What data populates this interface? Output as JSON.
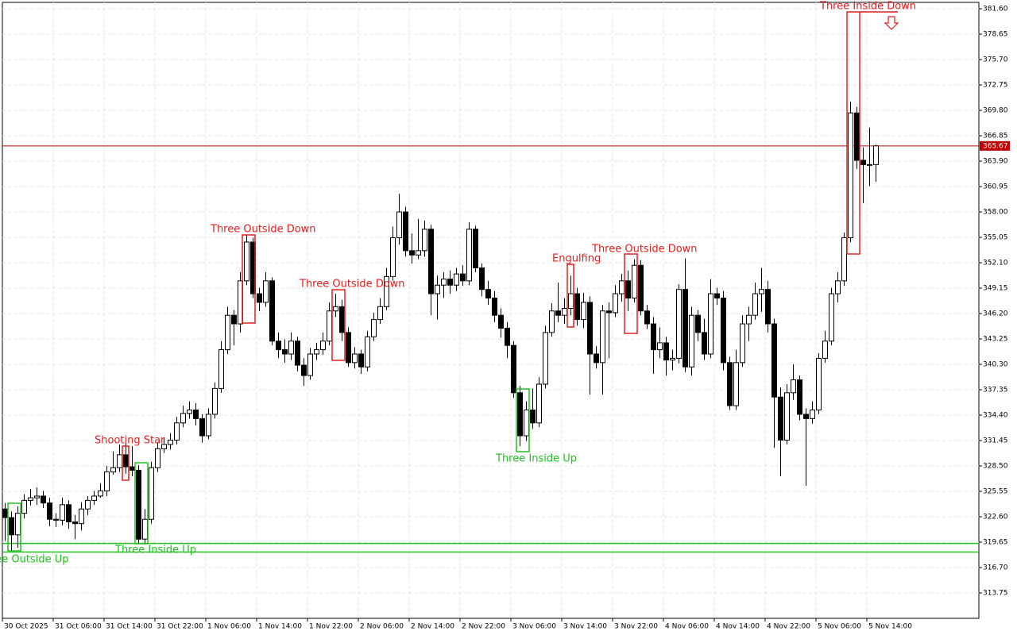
{
  "chart_data": {
    "type": "candlestick",
    "candles": [
      [
        323.5,
        324.2,
        319.8,
        322.5
      ],
      [
        322.5,
        323.2,
        318.6,
        320.5
      ],
      [
        320.5,
        323.8,
        319.0,
        323.0
      ],
      [
        323.0,
        325.2,
        322.4,
        324.5
      ],
      [
        324.5,
        325.8,
        323.9,
        324.8
      ],
      [
        324.8,
        326.0,
        324.0,
        325.0
      ],
      [
        325.0,
        325.6,
        323.6,
        324.2
      ],
      [
        324.2,
        324.8,
        321.5,
        322.3
      ],
      [
        322.3,
        323.0,
        321.4,
        322.2
      ],
      [
        322.2,
        324.8,
        321.6,
        324.0
      ],
      [
        324.0,
        324.5,
        321.2,
        322.0
      ],
      [
        322.0,
        322.8,
        320.0,
        321.8
      ],
      [
        321.8,
        324.3,
        321.0,
        323.5
      ],
      [
        323.5,
        325.0,
        322.8,
        324.5
      ],
      [
        324.5,
        325.6,
        324.0,
        325.0
      ],
      [
        325.0,
        326.5,
        324.8,
        325.6
      ],
      [
        325.6,
        328.5,
        325.0,
        327.8
      ],
      [
        327.8,
        330.2,
        327.5,
        328.3
      ],
      [
        328.3,
        331.0,
        327.8,
        329.8
      ],
      [
        329.8,
        331.2,
        327.6,
        328.4
      ],
      [
        328.4,
        330.8,
        327.3,
        328.0
      ],
      [
        328.0,
        328.6,
        319.5,
        320.0
      ],
      [
        320.0,
        323.5,
        319.4,
        322.3
      ],
      [
        322.3,
        329.0,
        321.8,
        328.3
      ],
      [
        328.3,
        331.2,
        327.8,
        330.5
      ],
      [
        330.5,
        331.8,
        330.0,
        331.0
      ],
      [
        331.0,
        332.3,
        330.4,
        331.5
      ],
      [
        331.5,
        334.2,
        331.0,
        333.5
      ],
      [
        333.5,
        335.5,
        333.0,
        334.6
      ],
      [
        334.6,
        336.0,
        334.0,
        335.0
      ],
      [
        335.0,
        335.8,
        333.2,
        334.0
      ],
      [
        334.0,
        334.5,
        331.2,
        332.0
      ],
      [
        332.0,
        335.2,
        331.6,
        334.5
      ],
      [
        334.5,
        338.2,
        334.0,
        337.5
      ],
      [
        337.5,
        343.0,
        337.0,
        342.0
      ],
      [
        342.0,
        347.0,
        341.5,
        346.0
      ],
      [
        346.0,
        346.6,
        342.5,
        345.0
      ],
      [
        345.0,
        351.0,
        344.0,
        350.0
      ],
      [
        350.0,
        355.3,
        349.5,
        354.5
      ],
      [
        354.5,
        355.0,
        348.0,
        348.5
      ],
      [
        348.5,
        349.2,
        346.5,
        347.5
      ],
      [
        347.5,
        351.0,
        347.0,
        350.0
      ],
      [
        350.0,
        350.4,
        342.5,
        343.0
      ],
      [
        343.0,
        344.0,
        341.0,
        342.0
      ],
      [
        342.0,
        343.2,
        340.5,
        341.5
      ],
      [
        341.5,
        344.0,
        340.8,
        343.0
      ],
      [
        343.0,
        343.5,
        339.5,
        340.2
      ],
      [
        340.2,
        341.0,
        337.8,
        339.0
      ],
      [
        339.0,
        342.2,
        338.5,
        341.5
      ],
      [
        341.5,
        342.8,
        340.8,
        342.0
      ],
      [
        342.0,
        344.0,
        341.4,
        343.0
      ],
      [
        343.0,
        347.5,
        342.5,
        346.5
      ],
      [
        346.5,
        348.5,
        345.8,
        347.0
      ],
      [
        347.0,
        347.8,
        343.0,
        344.0
      ],
      [
        344.0,
        344.6,
        340.0,
        340.5
      ],
      [
        340.5,
        342.3,
        339.8,
        341.5
      ],
      [
        341.5,
        342.0,
        339.2,
        340.0
      ],
      [
        340.0,
        344.2,
        339.5,
        343.5
      ],
      [
        343.5,
        346.3,
        343.0,
        345.5
      ],
      [
        345.5,
        348.0,
        345.0,
        347.0
      ],
      [
        347.0,
        351.5,
        346.6,
        350.5
      ],
      [
        350.5,
        356.3,
        350.0,
        355.0
      ],
      [
        355.0,
        360.1,
        354.2,
        358.0
      ],
      [
        358.0,
        358.6,
        352.8,
        353.5
      ],
      [
        353.5,
        355.5,
        352.0,
        353.0
      ],
      [
        353.0,
        357.2,
        352.5,
        353.5
      ],
      [
        353.5,
        357.0,
        352.8,
        356.0
      ],
      [
        356.0,
        356.5,
        346.0,
        348.5
      ],
      [
        348.5,
        350.6,
        345.5,
        349.5
      ],
      [
        349.5,
        351.0,
        348.0,
        350.2
      ],
      [
        350.2,
        351.2,
        348.5,
        349.5
      ],
      [
        349.5,
        351.5,
        348.8,
        350.8
      ],
      [
        350.8,
        351.8,
        349.4,
        350.0
      ],
      [
        350.0,
        356.8,
        349.5,
        356.0
      ],
      [
        356.0,
        356.4,
        351.0,
        351.5
      ],
      [
        351.5,
        352.0,
        348.2,
        349.0
      ],
      [
        349.0,
        350.0,
        347.2,
        348.0
      ],
      [
        348.0,
        348.8,
        345.2,
        346.0
      ],
      [
        346.0,
        346.8,
        343.4,
        344.5
      ],
      [
        344.5,
        345.2,
        341.0,
        342.5
      ],
      [
        342.5,
        343.0,
        336.4,
        337.0
      ],
      [
        337.0,
        337.8,
        330.8,
        332.0
      ],
      [
        332.0,
        336.0,
        331.4,
        335.0
      ],
      [
        335.0,
        337.5,
        332.8,
        333.5
      ],
      [
        333.5,
        338.8,
        333.0,
        338.0
      ],
      [
        338.0,
        344.8,
        337.5,
        344.0
      ],
      [
        344.0,
        347.4,
        343.5,
        346.5
      ],
      [
        346.5,
        349.8,
        345.2,
        346.0
      ],
      [
        346.0,
        348.0,
        345.0,
        346.8
      ],
      [
        346.8,
        350.6,
        346.0,
        348.5
      ],
      [
        348.5,
        349.2,
        344.8,
        345.5
      ],
      [
        345.5,
        348.6,
        344.5,
        347.5
      ],
      [
        347.5,
        348.2,
        336.8,
        341.5
      ],
      [
        341.5,
        342.4,
        339.8,
        340.5
      ],
      [
        340.5,
        347.2,
        336.8,
        346.5
      ],
      [
        346.5,
        347.5,
        341.0,
        346.3
      ],
      [
        346.3,
        349.5,
        345.8,
        348.5
      ],
      [
        348.5,
        350.8,
        347.6,
        350.0
      ],
      [
        350.0,
        351.2,
        346.5,
        348.0
      ],
      [
        348.0,
        352.5,
        347.5,
        351.8
      ],
      [
        351.8,
        352.4,
        346.0,
        346.5
      ],
      [
        346.5,
        347.2,
        344.4,
        345.0
      ],
      [
        345.0,
        345.8,
        339.2,
        342.0
      ],
      [
        342.0,
        344.6,
        341.0,
        342.8
      ],
      [
        342.8,
        343.5,
        339.0,
        340.8
      ],
      [
        340.8,
        342.0,
        339.6,
        341.0
      ],
      [
        341.0,
        349.6,
        340.4,
        349.0
      ],
      [
        349.0,
        352.6,
        339.4,
        340.0
      ],
      [
        340.0,
        347.0,
        339.0,
        346.0
      ],
      [
        346.0,
        346.6,
        343.0,
        344.0
      ],
      [
        344.0,
        345.6,
        340.8,
        341.5
      ],
      [
        341.5,
        350.2,
        341.0,
        348.5
      ],
      [
        348.5,
        349.2,
        347.2,
        348.0
      ],
      [
        348.0,
        348.8,
        339.6,
        340.5
      ],
      [
        340.5,
        341.2,
        335.0,
        335.5
      ],
      [
        335.5,
        342.0,
        335.0,
        340.5
      ],
      [
        340.5,
        346.0,
        340.0,
        345.0
      ],
      [
        345.0,
        347.0,
        343.0,
        346.0
      ],
      [
        346.0,
        349.8,
        345.5,
        348.5
      ],
      [
        348.5,
        351.5,
        346.4,
        349.0
      ],
      [
        349.0,
        350.0,
        344.0,
        345.0
      ],
      [
        345.0,
        345.6,
        330.6,
        336.5
      ],
      [
        336.5,
        337.6,
        327.3,
        331.5
      ],
      [
        331.5,
        338.0,
        331.0,
        337.0
      ],
      [
        337.0,
        340.3,
        336.2,
        338.5
      ],
      [
        338.5,
        339.0,
        333.8,
        334.5
      ],
      [
        334.5,
        335.2,
        326.2,
        334.0
      ],
      [
        334.0,
        336.0,
        333.4,
        335.0
      ],
      [
        335.0,
        341.6,
        334.5,
        341.0
      ],
      [
        341.0,
        344.2,
        340.5,
        343.0
      ],
      [
        343.0,
        349.2,
        342.5,
        348.5
      ],
      [
        348.5,
        351.0,
        347.5,
        350.0
      ],
      [
        350.0,
        355.6,
        349.4,
        355.0
      ],
      [
        355.0,
        370.8,
        354.5,
        369.5
      ],
      [
        369.5,
        370.2,
        363.0,
        364.0
      ],
      [
        364.0,
        365.5,
        359.0,
        363.5
      ],
      [
        363.5,
        367.8,
        361.0,
        363.5
      ],
      [
        363.5,
        365.8,
        361.5,
        365.67
      ]
    ],
    "up_color": "#ffffff",
    "down_color": "#000000",
    "ylim": [
      310.8,
      382.34
    ],
    "yticks": [
      {
        "value": 381.6,
        "label": "381.60"
      },
      {
        "value": 378.65,
        "label": "378.65"
      },
      {
        "value": 375.7,
        "label": "375.70"
      },
      {
        "value": 372.75,
        "label": "372.75"
      },
      {
        "value": 369.8,
        "label": "369.80"
      },
      {
        "value": 366.85,
        "label": "366.85"
      },
      {
        "value": 363.9,
        "label": "363.90"
      },
      {
        "value": 360.95,
        "label": "360.95"
      },
      {
        "value": 358,
        "label": "358.00"
      },
      {
        "value": 355.05,
        "label": "355.05"
      },
      {
        "value": 352.1,
        "label": "352.10"
      },
      {
        "value": 349.15,
        "label": "349.15"
      },
      {
        "value": 346.2,
        "label": "346.20"
      },
      {
        "value": 343.25,
        "label": "343.25"
      },
      {
        "value": 340.3,
        "label": "340.30"
      },
      {
        "value": 337.35,
        "label": "337.35"
      },
      {
        "value": 334.4,
        "label": "334.40"
      },
      {
        "value": 331.45,
        "label": "331.45"
      },
      {
        "value": 328.5,
        "label": "328.50"
      },
      {
        "value": 325.55,
        "label": "325.55"
      },
      {
        "value": 322.6,
        "label": "322.60"
      },
      {
        "value": 319.65,
        "label": "319.65"
      },
      {
        "value": 316.7,
        "label": "316.70"
      },
      {
        "value": 313.75,
        "label": "313.75"
      }
    ],
    "xtick_labels": [
      "30 Oct 2025",
      "31 Oct 06:00",
      "31 Oct 14:00",
      "31 Oct 22:00",
      "1 Nov 06:00",
      "1 Nov 14:00",
      "1 Nov 22:00",
      "2 Nov 06:00",
      "2 Nov 14:00",
      "2 Nov 22:00",
      "3 Nov 06:00",
      "3 Nov 14:00",
      "3 Nov 22:00",
      "4 Nov 06:00",
      "4 Nov 14:00",
      "4 Nov 22:00",
      "5 Nov 06:00",
      "5 Nov 14:00"
    ],
    "grid": true,
    "price_line": {
      "value": 365.67,
      "color": "#c00000"
    },
    "levels": [
      {
        "value": 319.5,
        "color": "#22c022"
      },
      {
        "value": 318.5,
        "color": "#22c022"
      }
    ],
    "annotations": [
      {
        "text": "Three Outside Up",
        "color": "#22c022"
      },
      {
        "text": "Shooting Star",
        "color": "#e02020"
      },
      {
        "text": "Three Inside Up",
        "color": "#22c022"
      },
      {
        "text": "Three Outside Down",
        "color": "#e02020"
      },
      {
        "text": "Three Outside Down",
        "color": "#e02020"
      },
      {
        "text": "Three Inside Up",
        "color": "#22c022"
      },
      {
        "text": "Engulfing",
        "color": "#e02020"
      },
      {
        "text": "Three Outside Down",
        "color": "#e02020"
      },
      {
        "text": "Three Inside Down",
        "color": "#e02020"
      }
    ]
  }
}
